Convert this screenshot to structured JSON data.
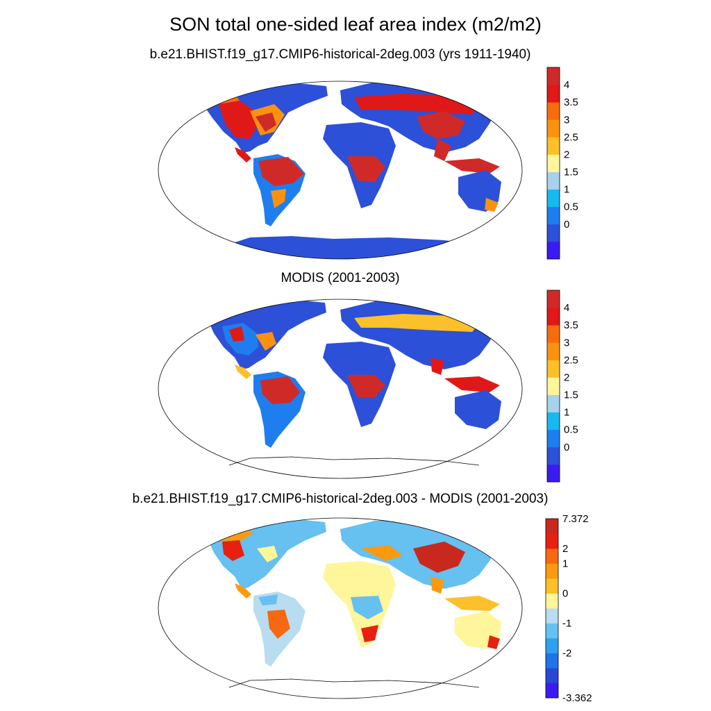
{
  "title": "SON total one-sided leaf area index (m2/m2)",
  "colors": {
    "abs": [
      "#3b1cf0",
      "#2d50d8",
      "#1e7ef0",
      "#18b8f0",
      "#a6d2ec",
      "#fff59a",
      "#fcc02a",
      "#fa9210",
      "#f86c10",
      "#e01818",
      "#d02a28"
    ],
    "diff": [
      "#3b1cf0",
      "#2a48d8",
      "#1e74e8",
      "#2ea0f0",
      "#66c0f0",
      "#b8dcf0",
      "#fff59a",
      "#fcc02a",
      "#fa9a10",
      "#f86810",
      "#e82010",
      "#c8281e"
    ]
  },
  "panels": [
    {
      "id": "model",
      "title": "b.e21.BHIST.f19_g17.CMIP6-historical-2deg.003 (yrs 1911-1940)",
      "colorbar": {
        "labels": [
          "4",
          "3.5",
          "3",
          "2.5",
          "2",
          "1.5",
          "1",
          "0.5",
          "0"
        ]
      }
    },
    {
      "id": "modis",
      "title": "MODIS (2001-2003)",
      "colorbar": {
        "labels": [
          "4",
          "3.5",
          "3",
          "2.5",
          "2",
          "1.5",
          "1",
          "0.5",
          "0"
        ]
      }
    },
    {
      "id": "diff",
      "title": "b.e21.BHIST.f19_g17.CMIP6-historical-2deg.003 - MODIS (2001-2003)",
      "colorbar": {
        "labels": [
          "7.372",
          "2",
          "1",
          "0",
          "-1",
          "-2",
          "-3.362"
        ]
      }
    }
  ]
}
